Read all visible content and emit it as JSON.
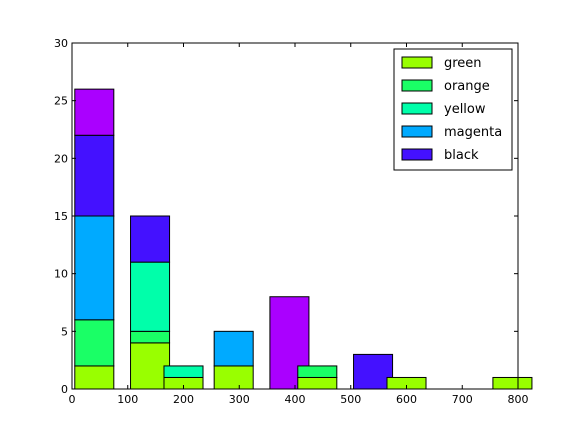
{
  "chart_data": {
    "type": "bar",
    "stacked": true,
    "x_positions": [
      40,
      140,
      200,
      290,
      390,
      440,
      540,
      600,
      790
    ],
    "bar_width_data": 70,
    "series": [
      {
        "name": "green",
        "color": "#99ff00",
        "values": [
          2,
          4,
          1,
          2,
          0,
          1,
          0,
          1,
          1
        ]
      },
      {
        "name": "orange",
        "color": "#1aff66",
        "values": [
          4,
          1,
          0,
          0,
          0,
          1,
          0,
          0,
          0
        ]
      },
      {
        "name": " yellow",
        "color": "#00ffaa",
        "values": [
          0,
          6,
          1,
          0,
          0,
          0,
          0,
          0,
          0
        ]
      },
      {
        "name": "magenta",
        "color": "#00aaff",
        "values": [
          9,
          0,
          0,
          3,
          0,
          0,
          0,
          0,
          0
        ]
      },
      {
        "name": "black",
        "color": "#4411ff",
        "values": [
          7,
          4,
          0,
          0,
          0,
          0,
          3,
          0,
          0
        ]
      },
      {
        "name": "",
        "color": "#aa00ff",
        "values": [
          4,
          0,
          0,
          0,
          8,
          0,
          0,
          0,
          0
        ]
      }
    ],
    "xlim": [
      0,
      800
    ],
    "ylim": [
      0,
      30
    ],
    "x_ticks": [
      "0",
      "100",
      "200",
      "300",
      "400",
      "500",
      "600",
      "700",
      "800"
    ],
    "y_ticks": [
      "0",
      "5",
      "10",
      "15",
      "20",
      "25",
      "30"
    ],
    "legend": {
      "position": "top-right",
      "entries": [
        "green",
        "orange",
        " yellow",
        "magenta",
        "black"
      ]
    },
    "grid": false
  }
}
